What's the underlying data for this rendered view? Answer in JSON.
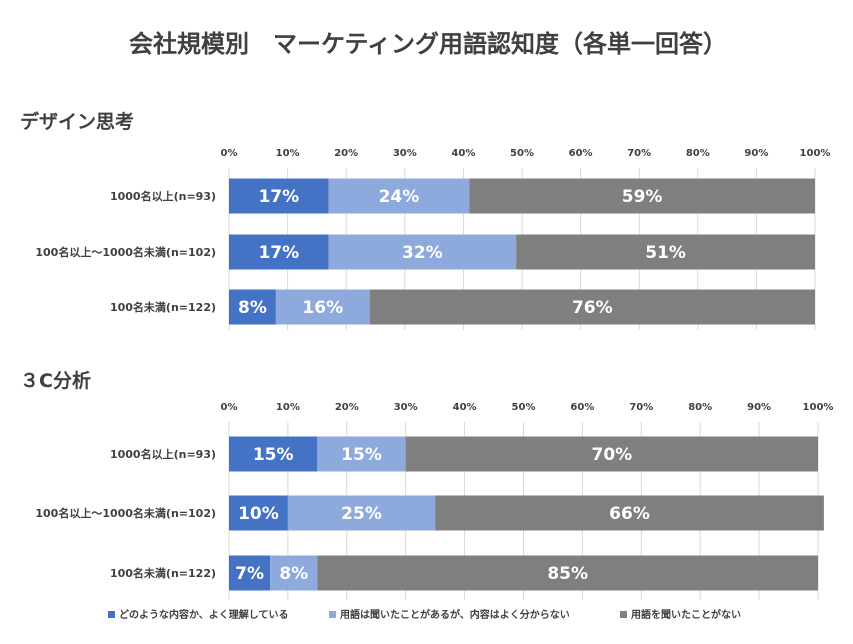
{
  "title": "会社規模別　マーケティング用語認知度（各単一回答）",
  "colors": {
    "understand": "#4472C4",
    "heard": "#8EA9DB",
    "never": "#7F7F7F",
    "grid": "#D9D9D9",
    "text": "#404040",
    "bar_label": "#ffffff"
  },
  "legend": [
    "どのような内容か、よく理解している",
    "用語は聞いたことがあるが、内容はよく分からない",
    "用語を聞いたことがない"
  ],
  "chart_data": [
    {
      "type": "bar",
      "orientation": "horizontal",
      "stacked": true,
      "title": "デザイン思考",
      "xlim": [
        0,
        100
      ],
      "x_tick_labels": [
        "0%",
        "10%",
        "20%",
        "30%",
        "40%",
        "50%",
        "60%",
        "70%",
        "80%",
        "90%",
        "100%"
      ],
      "categories": [
        "1000名以上(n=93)",
        "100名以上～1000名未満(n=102)",
        "100名未満(n=122)"
      ],
      "series": [
        {
          "name": "どのような内容か、よく理解している",
          "values": [
            17,
            17,
            8
          ]
        },
        {
          "name": "用語は聞いたことがあるが、内容はよく分からない",
          "values": [
            24,
            32,
            16
          ]
        },
        {
          "name": "用語を聞いたことがない",
          "values": [
            59,
            51,
            76
          ]
        }
      ],
      "grid": true,
      "legend_position": "bottom"
    },
    {
      "type": "bar",
      "orientation": "horizontal",
      "stacked": true,
      "title": "３C分析",
      "xlim": [
        0,
        100
      ],
      "x_tick_labels": [
        "0%",
        "10%",
        "20%",
        "30%",
        "40%",
        "50%",
        "60%",
        "70%",
        "80%",
        "90%",
        "100%"
      ],
      "categories": [
        "1000名以上(n=93)",
        "100名以上～1000名未満(n=102)",
        "100名未満(n=122)"
      ],
      "series": [
        {
          "name": "どのような内容か、よく理解している",
          "values": [
            15,
            10,
            7
          ]
        },
        {
          "name": "用語は聞いたことがあるが、内容はよく分からない",
          "values": [
            15,
            25,
            8
          ]
        },
        {
          "name": "用語を聞いたことがない",
          "values": [
            70,
            66,
            85
          ]
        }
      ],
      "grid": true,
      "legend_position": "bottom"
    }
  ]
}
